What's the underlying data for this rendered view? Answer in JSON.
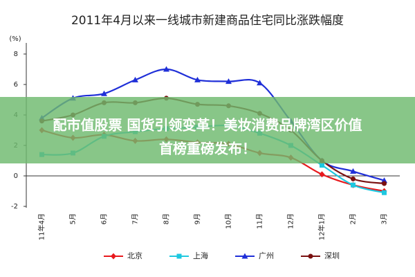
{
  "chart_data": {
    "type": "line",
    "title": "2011年4月以来一线城市新建商品住宅同比涨跌幅度",
    "y_label": "(%)",
    "categories": [
      "11年4月",
      "5月",
      "6月",
      "7月",
      "8月",
      "9月",
      "10月",
      "11月",
      "12月",
      "12年1月",
      "2月",
      "3月"
    ],
    "series": [
      {
        "name": "北京",
        "color": "#e8191d",
        "marker": "diamond",
        "values": [
          3.0,
          2.5,
          2.7,
          2.3,
          2.4,
          2.2,
          2.1,
          1.5,
          1.2,
          0.1,
          -0.6,
          -1.0
        ]
      },
      {
        "name": "上海",
        "color": "#1ec8e0",
        "marker": "square",
        "values": [
          1.4,
          1.5,
          2.6,
          2.9,
          3.1,
          3.2,
          3.3,
          2.8,
          2.0,
          0.7,
          -0.6,
          -1.1
        ]
      },
      {
        "name": "广州",
        "color": "#1f2fd8",
        "marker": "triangle",
        "values": [
          3.8,
          5.1,
          5.4,
          6.3,
          7.0,
          6.3,
          6.2,
          6.1,
          3.6,
          1.0,
          0.3,
          -0.3
        ]
      },
      {
        "name": "深圳",
        "color": "#7a1010",
        "marker": "circle",
        "values": [
          3.6,
          4.0,
          4.8,
          4.8,
          5.1,
          4.7,
          4.6,
          4.1,
          3.0,
          1.0,
          -0.2,
          -0.5
        ]
      }
    ],
    "ylim": [
      -2,
      8
    ],
    "yticks": [
      -2,
      0,
      2,
      4,
      6,
      8
    ],
    "legend": "bottom"
  },
  "banner": {
    "lines": [
      "配市值股票 国货引领变革！美妆消费品牌湾区价值",
      "首榜重磅发布！"
    ]
  }
}
